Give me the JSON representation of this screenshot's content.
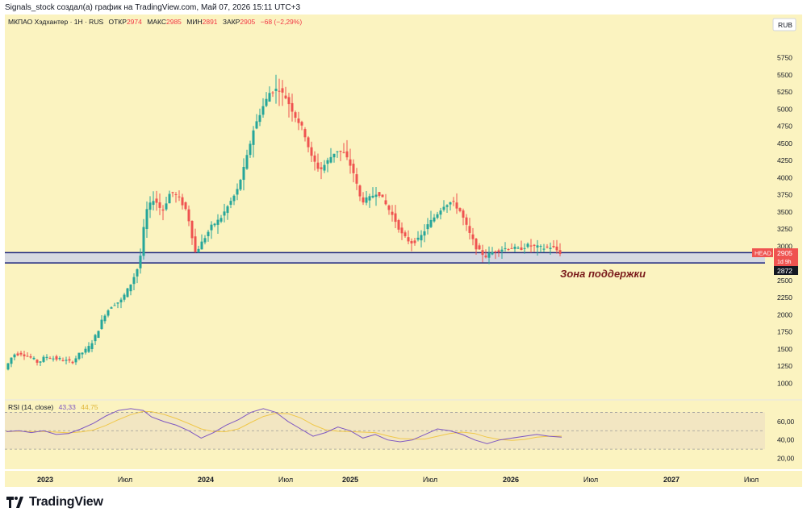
{
  "caption": "Signals_stock создал(а) график на TradingView.com, Май 07, 2026 15:11 UTC+3",
  "brand": "TradingView",
  "legend": {
    "symbol": "МКПАО Хэдхантер · 1Н · RUS",
    "open_label": "ОТКР",
    "open": "2974",
    "high_label": "МАКС",
    "high": "2985",
    "low_label": "МИН",
    "low": "2891",
    "close_label": "ЗАКР",
    "close": "2905",
    "change": "−68 (−2,29%)"
  },
  "currency": "RUB",
  "price_badges": {
    "ticker": "HEAD",
    "last_price": "2905",
    "countdown": "1d 9h",
    "zone_low": "2872"
  },
  "annotation": "Зона поддержки",
  "rsi": {
    "label": "RSI (14, close)",
    "value1": "43,33",
    "value2": "44,75",
    "ticks": [
      "60,00",
      "40,00",
      "20,00"
    ]
  },
  "colors": {
    "background": "#fbf3c0",
    "rsi_band": "#f2e6c2",
    "up": "#26a69a",
    "down": "#ef5350",
    "zone_line": "#1a237e",
    "zone_fill": "#cfd3e6",
    "rsi_line": "#7e57c2",
    "rsi_ma": "#f0c84a",
    "annotation": "#7b1c1c"
  },
  "chart_data": {
    "type": "candlestick",
    "y_ticks": [
      "5750",
      "5500",
      "5250",
      "5000",
      "4750",
      "4500",
      "4250",
      "4000",
      "3750",
      "3500",
      "3250",
      "3000",
      "2750",
      "2500",
      "2250",
      "2000",
      "1750",
      "1500",
      "1250",
      "1000"
    ],
    "ylim": [
      850,
      6050
    ],
    "x_ticks": [
      "2023",
      "Июл",
      "2024",
      "Июл",
      "2025",
      "Июл",
      "2026",
      "Июл",
      "2027",
      "Июл"
    ],
    "support_zone": [
      2872,
      2905
    ],
    "price_path": [
      [
        0,
        1200
      ],
      [
        4,
        1420
      ],
      [
        8,
        1440
      ],
      [
        12,
        1380
      ],
      [
        16,
        1300
      ],
      [
        20,
        1390
      ],
      [
        24,
        1360
      ],
      [
        28,
        1340
      ],
      [
        32,
        1300
      ],
      [
        36,
        1420
      ],
      [
        40,
        1500
      ],
      [
        44,
        1700
      ],
      [
        48,
        2000
      ],
      [
        52,
        2150
      ],
      [
        56,
        2200
      ],
      [
        60,
        2400
      ],
      [
        63,
        2600
      ],
      [
        65,
        2750
      ],
      [
        68,
        3500
      ],
      [
        72,
        3700
      ],
      [
        76,
        3500
      ],
      [
        80,
        3800
      ],
      [
        84,
        3700
      ],
      [
        88,
        3500
      ],
      [
        92,
        2900
      ],
      [
        96,
        3100
      ],
      [
        100,
        3300
      ],
      [
        104,
        3400
      ],
      [
        108,
        3600
      ],
      [
        112,
        3800
      ],
      [
        116,
        4200
      ],
      [
        120,
        4700
      ],
      [
        124,
        5000
      ],
      [
        128,
        5250
      ],
      [
        132,
        5300
      ],
      [
        136,
        5150
      ],
      [
        140,
        4900
      ],
      [
        144,
        4700
      ],
      [
        148,
        4300
      ],
      [
        152,
        4100
      ],
      [
        156,
        4250
      ],
      [
        160,
        4400
      ],
      [
        164,
        4350
      ],
      [
        168,
        4100
      ],
      [
        172,
        3650
      ],
      [
        176,
        3700
      ],
      [
        180,
        3800
      ],
      [
        184,
        3600
      ],
      [
        188,
        3400
      ],
      [
        192,
        3150
      ],
      [
        196,
        3050
      ],
      [
        200,
        3100
      ],
      [
        204,
        3300
      ],
      [
        208,
        3450
      ],
      [
        212,
        3600
      ],
      [
        216,
        3650
      ],
      [
        220,
        3500
      ],
      [
        224,
        3200
      ],
      [
        228,
        2950
      ],
      [
        232,
        2850
      ],
      [
        236,
        2920
      ],
      [
        240,
        2960
      ],
      [
        244,
        2980
      ],
      [
        248,
        2950
      ],
      [
        252,
        3010
      ],
      [
        256,
        2990
      ],
      [
        260,
        2970
      ],
      [
        264,
        2990
      ],
      [
        268,
        2905
      ]
    ],
    "rsi_values": [
      [
        0,
        49
      ],
      [
        6,
        50
      ],
      [
        12,
        48
      ],
      [
        18,
        50
      ],
      [
        24,
        46
      ],
      [
        30,
        47
      ],
      [
        36,
        52
      ],
      [
        42,
        58
      ],
      [
        48,
        66
      ],
      [
        54,
        72
      ],
      [
        60,
        74
      ],
      [
        66,
        72
      ],
      [
        70,
        65
      ],
      [
        76,
        60
      ],
      [
        82,
        56
      ],
      [
        88,
        50
      ],
      [
        94,
        42
      ],
      [
        100,
        48
      ],
      [
        106,
        56
      ],
      [
        112,
        62
      ],
      [
        118,
        70
      ],
      [
        124,
        74
      ],
      [
        130,
        70
      ],
      [
        136,
        60
      ],
      [
        142,
        52
      ],
      [
        148,
        44
      ],
      [
        154,
        48
      ],
      [
        160,
        54
      ],
      [
        166,
        50
      ],
      [
        172,
        42
      ],
      [
        178,
        46
      ],
      [
        184,
        40
      ],
      [
        190,
        38
      ],
      [
        196,
        40
      ],
      [
        202,
        46
      ],
      [
        208,
        52
      ],
      [
        214,
        50
      ],
      [
        220,
        46
      ],
      [
        226,
        40
      ],
      [
        232,
        36
      ],
      [
        238,
        40
      ],
      [
        244,
        42
      ],
      [
        250,
        44
      ],
      [
        256,
        46
      ],
      [
        262,
        44
      ],
      [
        268,
        43
      ]
    ],
    "rsi_ylim": [
      10,
      80
    ]
  }
}
